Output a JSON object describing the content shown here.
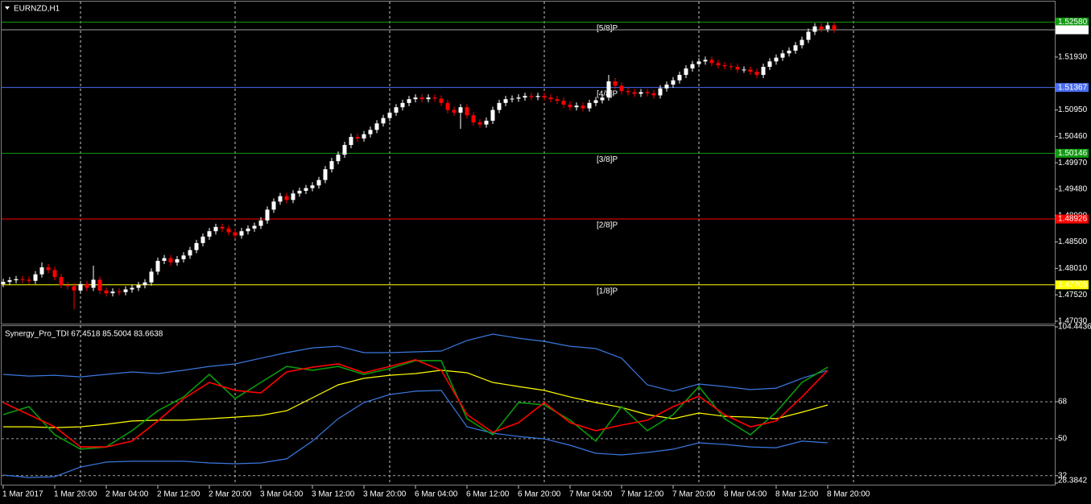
{
  "chart_data": [
    {
      "type": "candlestick",
      "title": "EURNZD,H1",
      "up_color": "#ffffff",
      "down_color": "#ff0000",
      "xlim": [
        -0.5,
        163.25
      ],
      "ylim": [
        1.4697,
        1.5296
      ],
      "xgrid": [
        12,
        36,
        60,
        84,
        108,
        132
      ],
      "yticks": [
        {
          "value": 1.5193,
          "label": "1.51930"
        },
        {
          "value": 1.5095,
          "label": "1.50950"
        },
        {
          "value": 1.5046,
          "label": "1.50460"
        },
        {
          "value": 1.4997,
          "label": "1.49970"
        },
        {
          "value": 1.4948,
          "label": "1.49480"
        },
        {
          "value": 1.4899,
          "label": "1.48990"
        },
        {
          "value": 1.485,
          "label": "1.48500"
        },
        {
          "value": 1.4801,
          "label": "1.48010"
        },
        {
          "value": 1.4752,
          "label": "1.47520"
        },
        {
          "value": 1.4703,
          "label": "1.47030"
        }
      ],
      "levels": [
        {
          "name": "[5/8]P",
          "value": 1.5258,
          "label": "1.52580",
          "color": "#119911"
        },
        {
          "name": "[4/8]P",
          "value": 1.51367,
          "color": "#4a6cf0"
        },
        {
          "name": "[3/8]P",
          "value": 1.50146,
          "color": "#119911"
        },
        {
          "name": "[2/8]P",
          "value": 1.48926,
          "color": "#ff0000"
        },
        {
          "name": "[1/8]P",
          "value": 1.47705,
          "color": "#ffff00"
        }
      ],
      "current_price": 1.52437,
      "open": [
        1.4772,
        1.4776,
        1.4779,
        1.4781,
        1.478,
        1.4778,
        1.479,
        1.4803,
        1.4798,
        1.4785,
        1.477,
        1.4768,
        1.476,
        1.4772,
        1.4765,
        1.478,
        1.476,
        1.4755,
        1.4758,
        1.4757,
        1.4762,
        1.4765,
        1.477,
        1.4775,
        1.4795,
        1.4815,
        1.482,
        1.4812,
        1.4818,
        1.4825,
        1.4835,
        1.4848,
        1.486,
        1.487,
        1.4878,
        1.4875,
        1.4868,
        1.4862,
        1.487,
        1.4875,
        1.488,
        1.489,
        1.491,
        1.4925,
        1.4935,
        1.4928,
        1.494,
        1.4945,
        1.495,
        1.4955,
        1.4965,
        1.4985,
        1.5,
        1.5012,
        1.503,
        1.5045,
        1.5042,
        1.505,
        1.5058,
        1.507,
        1.508,
        1.509,
        1.51,
        1.5108,
        1.5115,
        1.5118,
        1.5115,
        1.5118,
        1.5116,
        1.5108,
        1.5095,
        1.509,
        1.51,
        1.5085,
        1.5072,
        1.5068,
        1.5075,
        1.5095,
        1.5108,
        1.5115,
        1.5116,
        1.5118,
        1.5121,
        1.5119,
        1.5121,
        1.5118,
        1.5115,
        1.5112,
        1.5105,
        1.51,
        1.5103,
        1.5098,
        1.5108,
        1.5113,
        1.5118,
        1.5148,
        1.514,
        1.513,
        1.5128,
        1.5125,
        1.5128,
        1.5126,
        1.5122,
        1.5135,
        1.5142,
        1.515,
        1.516,
        1.5172,
        1.518,
        1.5185,
        1.5188,
        1.5182,
        1.5178,
        1.5176,
        1.5175,
        1.517,
        1.517,
        1.5166,
        1.516,
        1.5175,
        1.5185,
        1.5192,
        1.52,
        1.5205,
        1.5215,
        1.5225,
        1.524,
        1.525,
        1.5245,
        1.5252
      ],
      "high": [
        1.4782,
        1.4785,
        1.4787,
        1.4787,
        1.4786,
        1.4796,
        1.4812,
        1.4809,
        1.4804,
        1.4791,
        1.4776,
        1.4774,
        1.4778,
        1.4778,
        1.4806,
        1.4786,
        1.4766,
        1.4764,
        1.4764,
        1.4768,
        1.4771,
        1.4776,
        1.4781,
        1.4801,
        1.4821,
        1.4826,
        1.4826,
        1.4824,
        1.4831,
        1.4841,
        1.4854,
        1.4866,
        1.4876,
        1.4884,
        1.4884,
        1.4881,
        1.4874,
        1.4876,
        1.4881,
        1.4886,
        1.4896,
        1.4916,
        1.4931,
        1.4941,
        1.4941,
        1.4946,
        1.4951,
        1.4956,
        1.4961,
        1.4971,
        1.4991,
        1.5006,
        1.5018,
        1.5036,
        1.5051,
        1.5051,
        1.5056,
        1.5064,
        1.5076,
        1.5086,
        1.5096,
        1.5106,
        1.5114,
        1.5121,
        1.5124,
        1.5124,
        1.5124,
        1.5124,
        1.5122,
        1.5114,
        1.5101,
        1.5106,
        1.5106,
        1.5091,
        1.5078,
        1.5081,
        1.5101,
        1.5114,
        1.5121,
        1.5122,
        1.5124,
        1.5127,
        1.5127,
        1.5127,
        1.5127,
        1.5124,
        1.5121,
        1.5118,
        1.5111,
        1.5109,
        1.5109,
        1.5114,
        1.5119,
        1.5124,
        1.516,
        1.5154,
        1.5146,
        1.5136,
        1.5134,
        1.5134,
        1.5134,
        1.5132,
        1.5141,
        1.5148,
        1.5156,
        1.5166,
        1.5178,
        1.5186,
        1.5191,
        1.5194,
        1.5194,
        1.5188,
        1.5184,
        1.5182,
        1.5181,
        1.5176,
        1.5176,
        1.5172,
        1.5181,
        1.5191,
        1.5198,
        1.5206,
        1.5211,
        1.5221,
        1.5231,
        1.5246,
        1.5256,
        1.5256,
        1.5258,
        1.5258
      ],
      "low": [
        1.4766,
        1.477,
        1.4773,
        1.4774,
        1.4772,
        1.4772,
        1.4784,
        1.4792,
        1.4779,
        1.4764,
        1.4762,
        1.4725,
        1.4754,
        1.4759,
        1.4759,
        1.4754,
        1.4749,
        1.4749,
        1.4751,
        1.4751,
        1.4756,
        1.4759,
        1.4764,
        1.4769,
        1.4789,
        1.4809,
        1.4806,
        1.4806,
        1.4812,
        1.4819,
        1.4829,
        1.4842,
        1.4854,
        1.4864,
        1.4869,
        1.4862,
        1.4856,
        1.4856,
        1.4864,
        1.4869,
        1.4874,
        1.4884,
        1.4904,
        1.4919,
        1.4922,
        1.4922,
        1.4934,
        1.4939,
        1.4944,
        1.4949,
        1.4959,
        1.4979,
        1.4994,
        1.5006,
        1.5024,
        1.5036,
        1.5036,
        1.5044,
        1.5052,
        1.5064,
        1.5074,
        1.5084,
        1.5094,
        1.5102,
        1.5109,
        1.5109,
        1.5109,
        1.511,
        1.5102,
        1.5089,
        1.5084,
        1.506,
        1.5079,
        1.5066,
        1.5062,
        1.5062,
        1.5069,
        1.5089,
        1.5102,
        1.5109,
        1.511,
        1.5112,
        1.5113,
        1.5113,
        1.5112,
        1.5109,
        1.5106,
        1.5099,
        1.5094,
        1.5094,
        1.5092,
        1.5092,
        1.5102,
        1.5107,
        1.5112,
        1.5134,
        1.5124,
        1.5122,
        1.5119,
        1.5119,
        1.512,
        1.5116,
        1.5116,
        1.5129,
        1.5136,
        1.5144,
        1.5154,
        1.5166,
        1.5174,
        1.5179,
        1.5176,
        1.5172,
        1.517,
        1.5169,
        1.5164,
        1.5164,
        1.516,
        1.5154,
        1.5154,
        1.5169,
        1.5179,
        1.5186,
        1.5194,
        1.5199,
        1.5209,
        1.5219,
        1.5234,
        1.5239,
        1.5239,
        1.5238
      ],
      "close": [
        1.4776,
        1.4779,
        1.4781,
        1.478,
        1.4778,
        1.479,
        1.4803,
        1.4798,
        1.4785,
        1.477,
        1.4768,
        1.476,
        1.4772,
        1.4765,
        1.478,
        1.476,
        1.4755,
        1.4758,
        1.4757,
        1.4762,
        1.4765,
        1.477,
        1.4775,
        1.4795,
        1.4815,
        1.482,
        1.4812,
        1.4818,
        1.4825,
        1.4835,
        1.4848,
        1.486,
        1.487,
        1.4878,
        1.4875,
        1.4868,
        1.4862,
        1.487,
        1.4875,
        1.488,
        1.489,
        1.491,
        1.4925,
        1.4935,
        1.4928,
        1.494,
        1.4945,
        1.495,
        1.4955,
        1.4965,
        1.4985,
        1.5,
        1.5012,
        1.503,
        1.5045,
        1.5042,
        1.505,
        1.5058,
        1.507,
        1.508,
        1.509,
        1.51,
        1.5108,
        1.5115,
        1.5118,
        1.5115,
        1.5118,
        1.5116,
        1.5108,
        1.5095,
        1.509,
        1.51,
        1.5085,
        1.5072,
        1.5068,
        1.5075,
        1.5095,
        1.5108,
        1.5115,
        1.5116,
        1.5118,
        1.5121,
        1.5119,
        1.5121,
        1.5118,
        1.5115,
        1.5112,
        1.5105,
        1.51,
        1.5103,
        1.5098,
        1.5108,
        1.5113,
        1.5118,
        1.5148,
        1.514,
        1.513,
        1.5128,
        1.5125,
        1.5128,
        1.5126,
        1.5122,
        1.5135,
        1.5142,
        1.515,
        1.516,
        1.5172,
        1.518,
        1.5185,
        1.5188,
        1.5182,
        1.5178,
        1.5176,
        1.5175,
        1.517,
        1.517,
        1.5166,
        1.516,
        1.5175,
        1.5185,
        1.5192,
        1.52,
        1.5205,
        1.5215,
        1.5225,
        1.524,
        1.525,
        1.5245,
        1.5252,
        1.52437
      ]
    },
    {
      "type": "line",
      "title": "Synergy_Pro_TDI 67.4518 85.5004 83.6638",
      "xlim": [
        -0.5,
        163.25
      ],
      "ylim": [
        28.3842,
        104.4436
      ],
      "yticks": [
        104.4436,
        68,
        50,
        32,
        28.3842
      ],
      "x": [
        0,
        4,
        8,
        12,
        16,
        20,
        24,
        28,
        32,
        36,
        40,
        44,
        48,
        52,
        56,
        60,
        64,
        68,
        72,
        76,
        80,
        84,
        88,
        92,
        96,
        100,
        104,
        108,
        112,
        116,
        120,
        124,
        128
      ],
      "xticks": [
        {
          "value": 0,
          "label": "1 Mar 2017"
        },
        {
          "value": 8,
          "label": "1 Mar 20:00"
        },
        {
          "value": 16,
          "label": "2 Mar 04:00"
        },
        {
          "value": 24,
          "label": "2 Mar 12:00"
        },
        {
          "value": 32,
          "label": "2 Mar 20:00"
        },
        {
          "value": 40,
          "label": "3 Mar 04:00"
        },
        {
          "value": 48,
          "label": "3 Mar 12:00"
        },
        {
          "value": 56,
          "label": "3 Mar 20:00"
        },
        {
          "value": 64,
          "label": "6 Mar 04:00"
        },
        {
          "value": 72,
          "label": "6 Mar 12:00"
        },
        {
          "value": 80,
          "label": "6 Mar 20:00"
        },
        {
          "value": 88,
          "label": "7 Mar 04:00"
        },
        {
          "value": 96,
          "label": "7 Mar 12:00"
        },
        {
          "value": 104,
          "label": "7 Mar 20:00"
        },
        {
          "value": 112,
          "label": "8 Mar 04:00"
        },
        {
          "value": 120,
          "label": "8 Mar 12:00"
        },
        {
          "value": 128,
          "label": "8 Mar 20:00"
        }
      ],
      "series": [
        {
          "color": "#3a78e0",
          "values": [
            81.3,
            80.5,
            80.9,
            80.1,
            81.3,
            82.5,
            81.7,
            83.3,
            85.2,
            86.4,
            89.2,
            91.9,
            94.2,
            95.0,
            91.9,
            91.9,
            92.3,
            92.7,
            97.8,
            100.9,
            98.9,
            97.4,
            95.0,
            93.9,
            89.2,
            76.2,
            73.1,
            76.6,
            75.4,
            73.9,
            74.6,
            79.4,
            83.3
          ]
        },
        {
          "color": "#3a78e0",
          "values": [
            32.3,
            31.1,
            31.5,
            36.2,
            38.6,
            39.0,
            39.0,
            39.0,
            38.2,
            37.8,
            38.2,
            40.2,
            48.8,
            59.7,
            67.6,
            71.5,
            73.1,
            73.5,
            55.8,
            52.7,
            51.1,
            49.9,
            46.8,
            42.9,
            42.1,
            43.3,
            44.9,
            48.0,
            47.2,
            46.0,
            45.6,
            48.8,
            48.0
          ]
        },
        {
          "color": "#ffff00",
          "values": [
            55.8,
            55.8,
            55.4,
            55.8,
            57.0,
            58.6,
            59.0,
            59.0,
            59.7,
            60.5,
            61.3,
            63.6,
            69.9,
            76.2,
            79.4,
            80.9,
            81.7,
            83.3,
            82.1,
            77.4,
            75.4,
            73.5,
            70.3,
            67.6,
            65.2,
            61.7,
            59.7,
            62.5,
            60.9,
            60.5,
            59.7,
            62.9,
            66.4
          ]
        },
        {
          "color": "#0a9a0a",
          "values": [
            61.7,
            65.6,
            51.9,
            44.9,
            46.0,
            53.9,
            63.6,
            70.3,
            81.3,
            69.5,
            77.4,
            85.2,
            83.3,
            85.2,
            81.3,
            84.1,
            88.0,
            88.0,
            59.7,
            51.9,
            67.6,
            66.4,
            59.0,
            48.8,
            65.6,
            53.9,
            61.7,
            75.4,
            59.7,
            51.9,
            62.9,
            77.4,
            84.8
          ]
        },
        {
          "color": "#ff0000",
          "values": [
            67.6,
            61.7,
            55.8,
            46.0,
            46.0,
            48.8,
            58.6,
            69.5,
            77.4,
            73.5,
            72.3,
            82.5,
            84.8,
            86.4,
            82.1,
            85.2,
            88.4,
            83.3,
            61.7,
            53.1,
            57.8,
            67.6,
            57.8,
            53.9,
            56.6,
            59.0,
            65.6,
            70.7,
            61.7,
            55.8,
            58.6,
            70.3,
            83.3
          ]
        }
      ]
    }
  ]
}
